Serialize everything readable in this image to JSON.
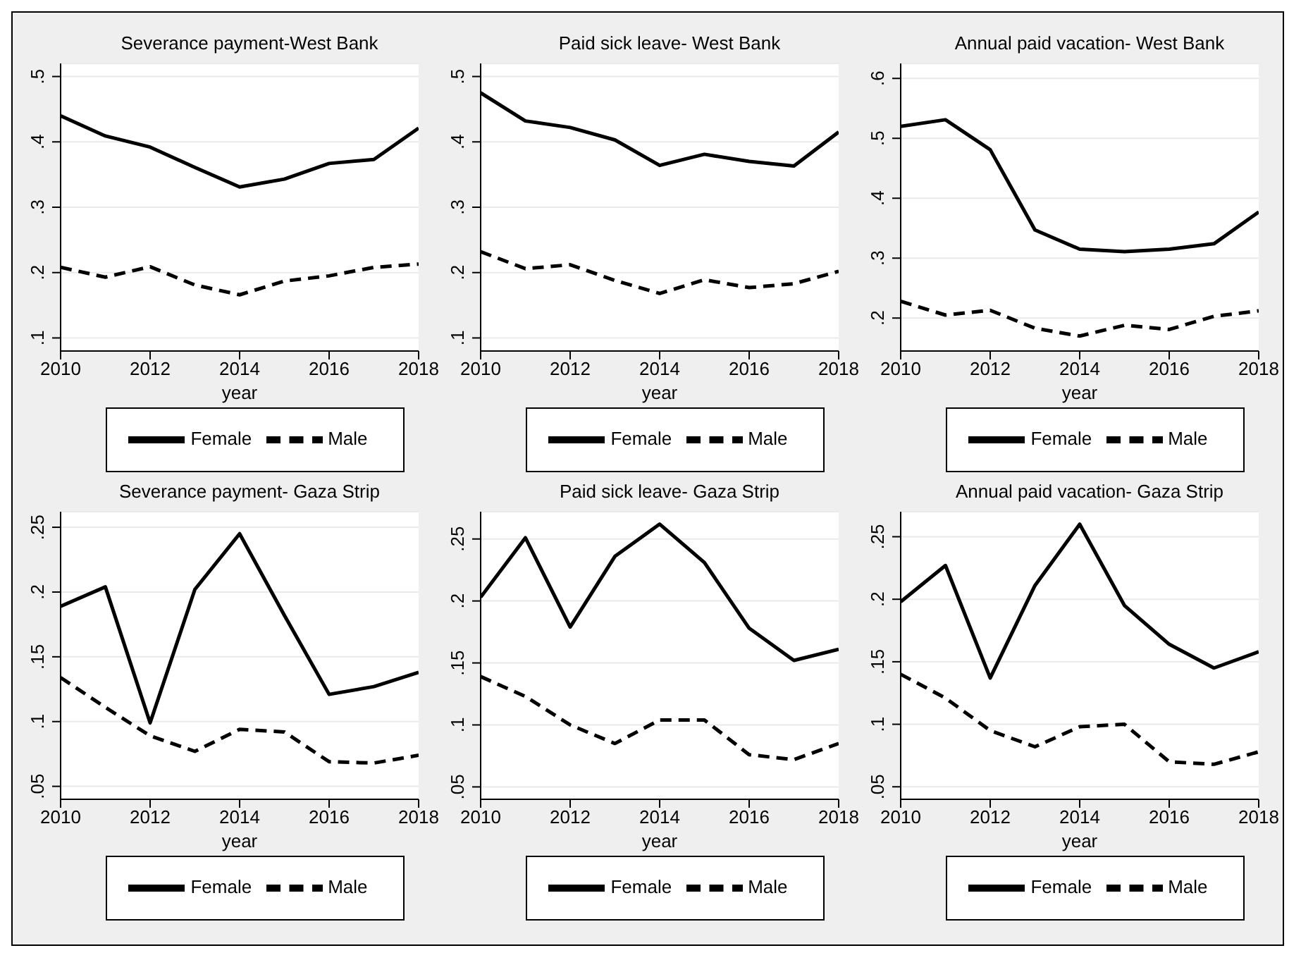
{
  "chart_data": [
    {
      "type": "line",
      "title": "Severance payment-West Bank",
      "xlabel": "year",
      "x": [
        2010,
        2011,
        2012,
        2013,
        2014,
        2015,
        2016,
        2017,
        2018
      ],
      "xlim": [
        2010,
        2018
      ],
      "xticks": [
        2010,
        2012,
        2014,
        2016,
        2018
      ],
      "ylim": [
        0.08,
        0.52
      ],
      "yticks": [
        {
          "value": 0.1,
          "label": ".1"
        },
        {
          "value": 0.2,
          "label": ".2"
        },
        {
          "value": 0.3,
          "label": ".3"
        },
        {
          "value": 0.4,
          "label": ".4"
        },
        {
          "value": 0.5,
          "label": ".5"
        }
      ],
      "grid": "y",
      "legend": "bottom",
      "marker": "none",
      "series": [
        {
          "name": "Male",
          "color": "#000000",
          "line_style": "dashed",
          "values": [
            0.208,
            0.193,
            0.209,
            0.181,
            0.166,
            0.187,
            0.195,
            0.208,
            0.213
          ]
        },
        {
          "name": "Female",
          "color": "#000000",
          "line_style": "solid",
          "values": [
            0.44,
            0.409,
            0.392,
            0.361,
            0.331,
            0.343,
            0.367,
            0.373,
            0.421
          ]
        }
      ]
    },
    {
      "type": "line",
      "title": "Paid sick leave- West Bank",
      "xlabel": "year",
      "x": [
        2010,
        2011,
        2012,
        2013,
        2014,
        2015,
        2016,
        2017,
        2018
      ],
      "xlim": [
        2010,
        2018
      ],
      "xticks": [
        2010,
        2012,
        2014,
        2016,
        2018
      ],
      "ylim": [
        0.08,
        0.52
      ],
      "yticks": [
        {
          "value": 0.1,
          "label": ".1"
        },
        {
          "value": 0.2,
          "label": ".2"
        },
        {
          "value": 0.3,
          "label": ".3"
        },
        {
          "value": 0.4,
          "label": ".4"
        },
        {
          "value": 0.5,
          "label": ".5"
        }
      ],
      "grid": "y",
      "legend": "bottom",
      "marker": "none",
      "series": [
        {
          "name": "Male",
          "color": "#000000",
          "line_style": "dashed",
          "values": [
            0.232,
            0.206,
            0.212,
            0.188,
            0.168,
            0.189,
            0.177,
            0.183,
            0.202
          ]
        },
        {
          "name": "Female",
          "color": "#000000",
          "line_style": "solid",
          "values": [
            0.475,
            0.432,
            0.422,
            0.403,
            0.364,
            0.381,
            0.37,
            0.363,
            0.415
          ]
        }
      ]
    },
    {
      "type": "line",
      "title": "Annual paid vacation- West Bank",
      "xlabel": "year",
      "x": [
        2010,
        2011,
        2012,
        2013,
        2014,
        2015,
        2016,
        2017,
        2018
      ],
      "xlim": [
        2010,
        2018
      ],
      "xticks": [
        2010,
        2012,
        2014,
        2016,
        2018
      ],
      "ylim": [
        0.145,
        0.625
      ],
      "yticks": [
        {
          "value": 0.2,
          "label": ".2"
        },
        {
          "value": 0.3,
          "label": ".3"
        },
        {
          "value": 0.4,
          "label": ".4"
        },
        {
          "value": 0.5,
          "label": ".5"
        },
        {
          "value": 0.6,
          "label": ".6"
        }
      ],
      "grid": "y",
      "legend": "bottom",
      "marker": "none",
      "series": [
        {
          "name": "Male",
          "color": "#000000",
          "line_style": "dashed",
          "values": [
            0.228,
            0.205,
            0.213,
            0.183,
            0.17,
            0.188,
            0.181,
            0.203,
            0.212
          ]
        },
        {
          "name": "Female",
          "color": "#000000",
          "line_style": "solid",
          "values": [
            0.52,
            0.531,
            0.481,
            0.347,
            0.315,
            0.311,
            0.315,
            0.324,
            0.377
          ]
        }
      ]
    },
    {
      "type": "line",
      "title": "Severance payment- Gaza Strip",
      "xlabel": "year",
      "x": [
        2010,
        2011,
        2012,
        2013,
        2014,
        2015,
        2016,
        2017,
        2018
      ],
      "xlim": [
        2010,
        2018
      ],
      "xticks": [
        2010,
        2012,
        2014,
        2016,
        2018
      ],
      "ylim": [
        0.04,
        0.262
      ],
      "yticks": [
        {
          "value": 0.05,
          "label": ".05"
        },
        {
          "value": 0.1,
          "label": ".1"
        },
        {
          "value": 0.15,
          "label": ".15"
        },
        {
          "value": 0.2,
          "label": ".2"
        },
        {
          "value": 0.25,
          "label": ".25"
        }
      ],
      "grid": "y",
      "legend": "bottom",
      "marker": "none",
      "series": [
        {
          "name": "Male",
          "color": "#000000",
          "line_style": "dashed",
          "values": [
            0.134,
            0.111,
            0.089,
            0.077,
            0.094,
            0.092,
            0.069,
            0.068,
            0.074
          ]
        },
        {
          "name": "Female",
          "color": "#000000",
          "line_style": "solid",
          "values": [
            0.189,
            0.204,
            0.099,
            0.202,
            0.245,
            0.182,
            0.121,
            0.127,
            0.138
          ]
        }
      ]
    },
    {
      "type": "line",
      "title": "Paid sick leave- Gaza Strip",
      "xlabel": "year",
      "x": [
        2010,
        2011,
        2012,
        2013,
        2014,
        2015,
        2016,
        2017,
        2018
      ],
      "xlim": [
        2010,
        2018
      ],
      "xticks": [
        2010,
        2012,
        2014,
        2016,
        2018
      ],
      "ylim": [
        0.04,
        0.272
      ],
      "yticks": [
        {
          "value": 0.05,
          "label": ".05"
        },
        {
          "value": 0.1,
          "label": ".1"
        },
        {
          "value": 0.15,
          "label": ".15"
        },
        {
          "value": 0.2,
          "label": ".2"
        },
        {
          "value": 0.25,
          "label": ".25"
        }
      ],
      "grid": "y",
      "legend": "bottom",
      "marker": "none",
      "series": [
        {
          "name": "Male",
          "color": "#000000",
          "line_style": "dashed",
          "values": [
            0.139,
            0.123,
            0.1,
            0.085,
            0.104,
            0.104,
            0.076,
            0.072,
            0.085
          ]
        },
        {
          "name": "Female",
          "color": "#000000",
          "line_style": "solid",
          "values": [
            0.203,
            0.251,
            0.179,
            0.236,
            0.262,
            0.231,
            0.178,
            0.152,
            0.161
          ]
        }
      ]
    },
    {
      "type": "line",
      "title": "Annual paid vacation- Gaza Strip",
      "xlabel": "year",
      "x": [
        2010,
        2011,
        2012,
        2013,
        2014,
        2015,
        2016,
        2017,
        2018
      ],
      "xlim": [
        2010,
        2018
      ],
      "xticks": [
        2010,
        2012,
        2014,
        2016,
        2018
      ],
      "ylim": [
        0.04,
        0.27
      ],
      "yticks": [
        {
          "value": 0.05,
          "label": ".05"
        },
        {
          "value": 0.1,
          "label": ".1"
        },
        {
          "value": 0.15,
          "label": ".15"
        },
        {
          "value": 0.2,
          "label": ".2"
        },
        {
          "value": 0.25,
          "label": ".25"
        }
      ],
      "grid": "y",
      "legend": "bottom",
      "marker": "none",
      "series": [
        {
          "name": "Male",
          "color": "#000000",
          "line_style": "dashed",
          "values": [
            0.14,
            0.121,
            0.095,
            0.082,
            0.098,
            0.1,
            0.07,
            0.068,
            0.078
          ]
        },
        {
          "name": "Female",
          "color": "#000000",
          "line_style": "solid",
          "values": [
            0.198,
            0.227,
            0.137,
            0.211,
            0.26,
            0.195,
            0.164,
            0.145,
            0.158
          ]
        }
      ]
    }
  ]
}
